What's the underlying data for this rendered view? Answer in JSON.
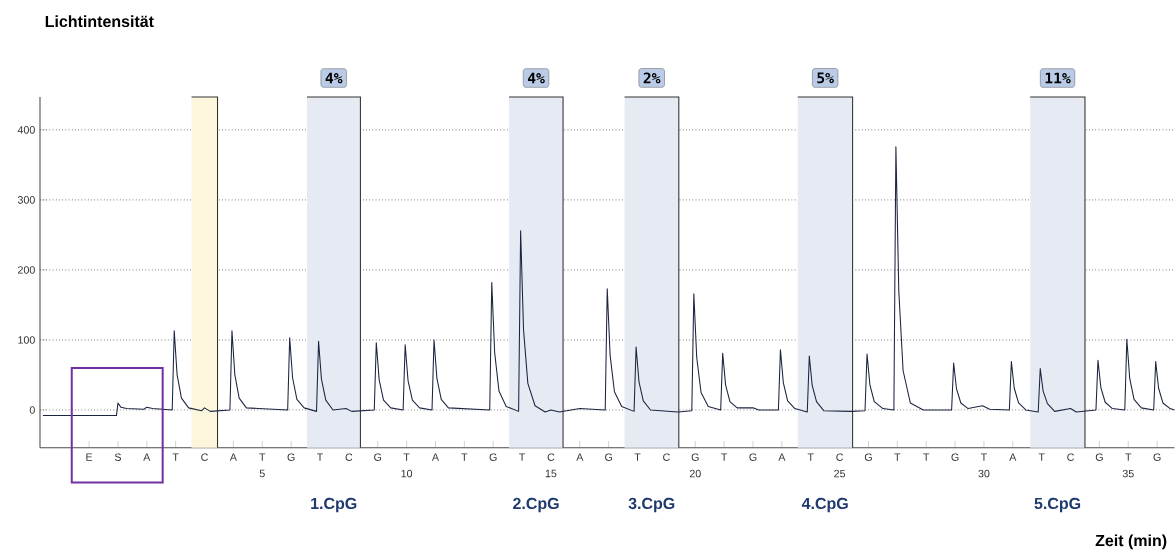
{
  "chart_data": {
    "type": "line",
    "ylabel": "Lichtintensität",
    "xlabel": "Zeit (min)",
    "xlim": [
      -2.7,
      36.6
    ],
    "ylim": [
      -54,
      447
    ],
    "yticks": [
      0,
      100,
      200,
      300,
      400
    ],
    "grid": "y",
    "xticks": [
      {
        "value": -1,
        "label": null
      },
      {
        "value": 0,
        "label": null
      },
      {
        "value": 1,
        "label": null
      },
      {
        "value": 2,
        "label": null
      },
      {
        "value": 3,
        "label": null
      },
      {
        "value": 4,
        "label": null
      },
      5,
      {
        "value": 6,
        "label": null
      },
      {
        "value": 7,
        "label": null
      },
      {
        "value": 8,
        "label": null
      },
      {
        "value": 9,
        "label": null
      },
      10,
      {
        "value": 11,
        "label": null
      },
      {
        "value": 12,
        "label": null
      },
      {
        "value": 13,
        "label": null
      },
      {
        "value": 14,
        "label": null
      },
      15,
      {
        "value": 16,
        "label": null
      },
      {
        "value": 17,
        "label": null
      },
      {
        "value": 18,
        "label": null
      },
      {
        "value": 19,
        "label": null
      },
      20,
      {
        "value": 21,
        "label": null
      },
      {
        "value": 22,
        "label": null
      },
      {
        "value": 23,
        "label": null
      },
      {
        "value": 24,
        "label": null
      },
      25,
      {
        "value": 26,
        "label": null
      },
      {
        "value": 27,
        "label": null
      },
      {
        "value": 28,
        "label": null
      },
      {
        "value": 29,
        "label": null
      },
      30,
      {
        "value": 31,
        "label": null
      },
      {
        "value": 32,
        "label": null
      },
      {
        "value": 33,
        "label": null
      },
      {
        "value": 34,
        "label": null
      },
      35,
      {
        "value": 36,
        "label": null
      }
    ],
    "series": [
      {
        "color": "#1c2540",
        "x": [
          -2.6,
          -0.05,
          0.0,
          0.1,
          0.3,
          0.9,
          1.0,
          1.2,
          1.88,
          1.95,
          2.05,
          2.2,
          2.45,
          2.9,
          3.0,
          3.2,
          3.88,
          3.95,
          4.05,
          4.2,
          4.45,
          5.88,
          5.95,
          6.05,
          6.2,
          6.45,
          6.88,
          6.95,
          7.05,
          7.2,
          7.45,
          7.9,
          8.1,
          8.88,
          8.95,
          9.05,
          9.2,
          9.45,
          9.88,
          9.95,
          10.05,
          10.2,
          10.45,
          10.88,
          10.95,
          11.05,
          11.2,
          11.45,
          12.88,
          12.95,
          13.05,
          13.2,
          13.45,
          13.88,
          13.95,
          14.05,
          14.2,
          14.45,
          14.8,
          15.0,
          15.3,
          16.0,
          16.88,
          16.95,
          17.05,
          17.2,
          17.45,
          17.88,
          17.95,
          18.05,
          18.2,
          18.45,
          19.4,
          19.88,
          19.95,
          20.05,
          20.2,
          20.45,
          20.88,
          20.95,
          21.05,
          21.2,
          21.45,
          22.0,
          22.2,
          22.88,
          22.95,
          23.05,
          23.2,
          23.45,
          23.88,
          23.95,
          24.05,
          24.2,
          24.45,
          25.4,
          25.88,
          25.95,
          26.05,
          26.2,
          26.5,
          26.88,
          26.95,
          27.05,
          27.2,
          27.45,
          27.9,
          28.88,
          28.95,
          29.05,
          29.2,
          29.45,
          29.95,
          30.2,
          30.88,
          30.95,
          31.05,
          31.2,
          31.45,
          31.88,
          31.95,
          32.05,
          32.2,
          32.45,
          33.0,
          33.2,
          33.88,
          33.95,
          34.05,
          34.2,
          34.45,
          34.88,
          34.95,
          35.05,
          35.2,
          35.45,
          35.88,
          35.95,
          36.05,
          36.2,
          36.45,
          36.6
        ],
        "values": [
          -8,
          -8,
          10,
          4,
          2,
          1,
          4,
          2,
          0,
          113,
          50,
          17,
          3,
          -1,
          3,
          -2,
          0,
          113,
          50,
          17,
          3,
          0,
          103,
          46,
          15,
          3,
          -2,
          98,
          44,
          14,
          0,
          2,
          -2,
          0,
          96,
          43,
          14,
          3,
          0,
          93,
          42,
          14,
          3,
          0,
          100,
          45,
          15,
          3,
          0,
          182,
          82,
          27,
          5,
          -2,
          256,
          115,
          38,
          6,
          -3,
          0,
          -3,
          2,
          0,
          173,
          78,
          26,
          5,
          -2,
          90,
          40,
          13,
          0,
          -3,
          -1,
          166,
          75,
          25,
          5,
          0,
          81,
          36,
          12,
          3,
          3,
          0,
          0,
          86,
          39,
          13,
          2,
          -3,
          77,
          35,
          12,
          -1,
          -2,
          -1,
          80,
          36,
          12,
          2,
          0,
          376,
          170,
          56,
          10,
          0,
          0,
          67,
          30,
          10,
          2,
          6,
          1,
          0,
          69,
          31,
          10,
          0,
          -3,
          59,
          27,
          9,
          -2,
          2,
          -3,
          0,
          71,
          32,
          11,
          2,
          0,
          101,
          45,
          15,
          3,
          0,
          69,
          31,
          10,
          2,
          0
        ]
      }
    ],
    "bands": [
      {
        "axis": "x",
        "from": 2.55,
        "to": 3.45,
        "color": "#fbf6dc"
      },
      {
        "axis": "x",
        "from": 6.55,
        "to": 8.4,
        "color": "#e6ebf3",
        "label": "4%"
      },
      {
        "axis": "x",
        "from": 13.55,
        "to": 15.42,
        "color": "#e6ebf3",
        "label": "4%"
      },
      {
        "axis": "x",
        "from": 17.55,
        "to": 19.43,
        "color": "#e6ebf3",
        "label": "2%"
      },
      {
        "axis": "x",
        "from": 23.55,
        "to": 25.45,
        "color": "#e6ebf3",
        "label": "5%"
      },
      {
        "axis": "x",
        "from": 31.6,
        "to": 33.5,
        "color": "#e6ebf3",
        "label": "11%"
      }
    ],
    "annotations": [
      "E",
      "S",
      "A",
      "T",
      "C",
      "A",
      "T",
      "G",
      "T",
      "C",
      "G",
      "T",
      "A",
      "T",
      "G",
      "T",
      "C",
      "A",
      "G",
      "T",
      "C",
      "G",
      "T",
      "G",
      "A",
      "T",
      "C",
      "G",
      "T",
      "T",
      "G",
      "T",
      "A",
      "T",
      "C",
      "G",
      "T",
      "G",
      "1.CpG",
      "2.CpG",
      "3.CpG",
      "4.CpG",
      "5.CpG"
    ]
  }
}
